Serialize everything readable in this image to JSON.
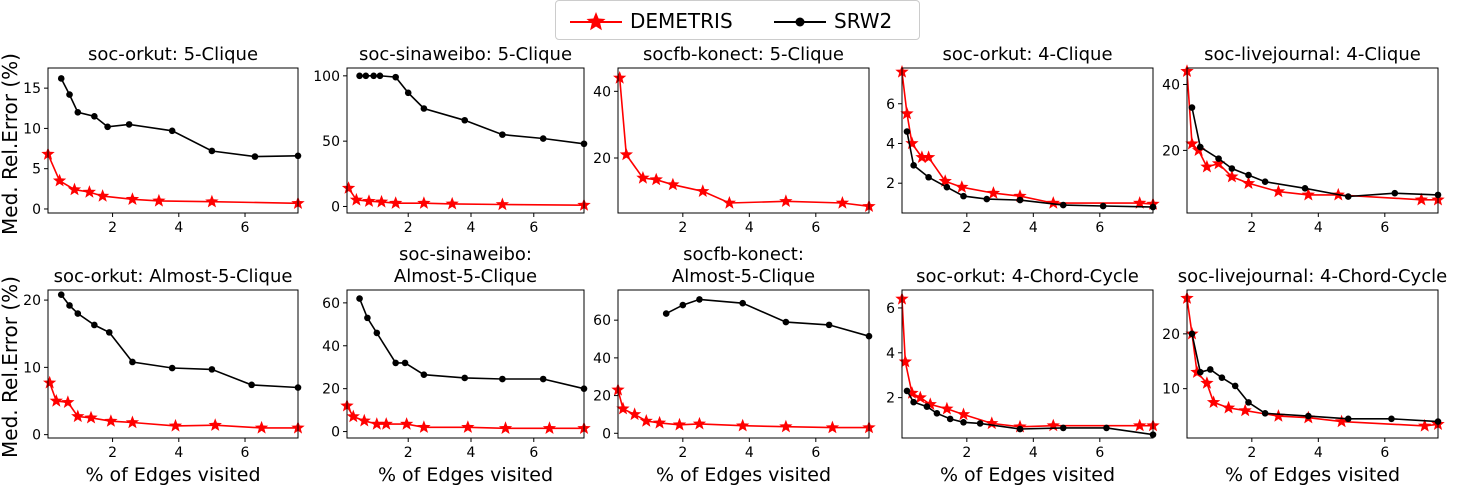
{
  "legend": [
    {
      "label": "DEMETRIS",
      "color": "#ff0000",
      "marker": "star"
    },
    {
      "label": "SRW2",
      "color": "#000000",
      "marker": "circle"
    }
  ],
  "ylabel": "Med. Rel.Error (%)",
  "xlabel": "% of Edges visited",
  "chart_data": [
    {
      "type": "line",
      "title": [
        "soc-orkut: 5-Clique"
      ],
      "xlim": [
        0.05,
        7.6
      ],
      "ylim": [
        -0.5,
        17.5
      ],
      "xticks": [
        2,
        4,
        6
      ],
      "yticks": [
        0,
        5,
        10,
        15
      ],
      "xticklabels": false,
      "series": [
        {
          "name": "DEMETRIS",
          "x": [
            0.05,
            0.4,
            0.85,
            1.3,
            1.7,
            2.6,
            3.4,
            5.0,
            7.6
          ],
          "y": [
            6.8,
            3.5,
            2.4,
            2.1,
            1.6,
            1.2,
            1.0,
            0.9,
            0.7
          ]
        },
        {
          "name": "SRW2",
          "x": [
            0.45,
            0.7,
            0.95,
            1.45,
            1.85,
            2.5,
            3.8,
            5.0,
            6.3,
            7.6
          ],
          "y": [
            16.2,
            14.2,
            12.0,
            11.5,
            10.2,
            10.5,
            9.7,
            7.2,
            6.5,
            6.6
          ]
        }
      ]
    },
    {
      "type": "line",
      "title": [
        "soc-sinaweibo: 5-Clique"
      ],
      "xlim": [
        0.05,
        7.6
      ],
      "ylim": [
        -5,
        106
      ],
      "xticks": [
        2,
        4,
        6
      ],
      "yticks": [
        0,
        50,
        100
      ],
      "xticklabels": false,
      "series": [
        {
          "name": "DEMETRIS",
          "x": [
            0.1,
            0.35,
            0.75,
            1.15,
            1.6,
            2.5,
            3.4,
            5.0,
            7.6
          ],
          "y": [
            14,
            5,
            4,
            3.5,
            2.5,
            2.5,
            2,
            1.5,
            1
          ]
        },
        {
          "name": "SRW2",
          "x": [
            0.45,
            0.65,
            0.9,
            1.1,
            1.6,
            2.0,
            2.5,
            3.8,
            5.0,
            6.3,
            7.6
          ],
          "y": [
            100,
            100,
            100,
            100,
            99,
            87,
            75,
            66,
            55,
            52,
            48
          ]
        }
      ]
    },
    {
      "type": "line",
      "title": [
        "socfb-konect: 5-Clique"
      ],
      "xlim": [
        0.05,
        7.6
      ],
      "ylim": [
        3.5,
        47
      ],
      "xticks": [
        2,
        4,
        6
      ],
      "yticks": [
        20,
        40
      ],
      "xticklabels": false,
      "series": [
        {
          "name": "DEMETRIS",
          "x": [
            0.1,
            0.3,
            0.8,
            1.2,
            1.7,
            2.6,
            3.4,
            5.1,
            6.8,
            7.6
          ],
          "y": [
            44,
            21,
            14,
            13.5,
            12,
            10,
            6.5,
            7,
            6.5,
            5.5
          ]
        }
      ]
    },
    {
      "type": "line",
      "title": [
        "soc-orkut: 4-Clique"
      ],
      "xlim": [
        0.05,
        7.6
      ],
      "ylim": [
        0.5,
        7.8
      ],
      "xticks": [
        2,
        4,
        6
      ],
      "yticks": [
        2,
        4,
        6
      ],
      "xticklabels": false,
      "series": [
        {
          "name": "DEMETRIS",
          "x": [
            0.05,
            0.2,
            0.35,
            0.65,
            0.85,
            1.35,
            1.85,
            2.8,
            3.6,
            4.6,
            7.2,
            7.6
          ],
          "y": [
            7.6,
            5.5,
            4.0,
            3.3,
            3.3,
            2.1,
            1.8,
            1.5,
            1.35,
            1.0,
            1.0,
            0.95
          ]
        },
        {
          "name": "SRW2",
          "x": [
            0.2,
            0.4,
            0.85,
            1.4,
            1.9,
            2.6,
            3.6,
            4.9,
            6.1,
            7.6
          ],
          "y": [
            4.6,
            2.9,
            2.3,
            1.8,
            1.35,
            1.2,
            1.15,
            0.9,
            0.85,
            0.8
          ]
        }
      ]
    },
    {
      "type": "line",
      "title": [
        "soc-livejournal: 4-Clique"
      ],
      "xlim": [
        0.05,
        7.6
      ],
      "ylim": [
        1,
        45
      ],
      "xticks": [
        2,
        4,
        6
      ],
      "yticks": [
        20,
        40
      ],
      "xticklabels": false,
      "series": [
        {
          "name": "DEMETRIS",
          "x": [
            0.05,
            0.2,
            0.4,
            0.65,
            1.0,
            1.4,
            1.9,
            2.8,
            3.7,
            4.6,
            7.1,
            7.6
          ],
          "y": [
            44,
            22,
            20,
            15,
            16,
            12,
            10,
            7.5,
            6.5,
            6.5,
            5,
            5
          ]
        },
        {
          "name": "SRW2",
          "x": [
            0.2,
            0.45,
            1.0,
            1.4,
            1.9,
            2.4,
            3.6,
            4.9,
            6.3,
            7.6
          ],
          "y": [
            33,
            21,
            17.5,
            14.5,
            12.5,
            10.5,
            8.5,
            6,
            7,
            6.5
          ]
        }
      ]
    },
    {
      "type": "line",
      "title": [
        "soc-orkut: Almost-5-Clique"
      ],
      "xlim": [
        0.05,
        7.6
      ],
      "ylim": [
        -0.5,
        21.5
      ],
      "xticks": [
        2,
        4,
        6
      ],
      "yticks": [
        0,
        10,
        20
      ],
      "xticklabels": true,
      "series": [
        {
          "name": "DEMETRIS",
          "x": [
            0.1,
            0.3,
            0.65,
            0.95,
            1.35,
            1.95,
            2.6,
            3.9,
            5.1,
            6.5,
            7.6
          ],
          "y": [
            7.7,
            5,
            4.8,
            2.7,
            2.5,
            2.0,
            1.8,
            1.3,
            1.4,
            1.0,
            1.0
          ]
        },
        {
          "name": "SRW2",
          "x": [
            0.45,
            0.7,
            0.95,
            1.45,
            1.9,
            2.6,
            3.8,
            5.0,
            6.2,
            7.6
          ],
          "y": [
            20.8,
            19.2,
            18.0,
            16.3,
            15.2,
            10.8,
            9.9,
            9.7,
            7.4,
            7.0
          ]
        }
      ]
    },
    {
      "type": "line",
      "title": [
        "soc-sinaweibo:",
        "Almost-5-Clique"
      ],
      "xlim": [
        0.05,
        7.6
      ],
      "ylim": [
        -3,
        66
      ],
      "xticks": [
        2,
        4,
        6
      ],
      "yticks": [
        0,
        20,
        40,
        60
      ],
      "xticklabels": true,
      "series": [
        {
          "name": "DEMETRIS",
          "x": [
            0.05,
            0.25,
            0.6,
            1.0,
            1.3,
            1.95,
            2.5,
            3.9,
            5.1,
            6.5,
            7.6
          ],
          "y": [
            12,
            7,
            5,
            3.5,
            3.5,
            3.5,
            2,
            2,
            1.5,
            1.5,
            1.5
          ]
        },
        {
          "name": "SRW2",
          "x": [
            0.45,
            0.7,
            1.0,
            1.6,
            1.9,
            2.5,
            3.8,
            5.0,
            6.3,
            7.6
          ],
          "y": [
            62,
            53,
            46,
            32,
            32,
            26.5,
            25,
            24.5,
            24.5,
            20
          ]
        }
      ]
    },
    {
      "type": "line",
      "title": [
        "socfb-konect:",
        "Almost-5-Clique"
      ],
      "xlim": [
        0.05,
        7.6
      ],
      "ylim": [
        -2.5,
        76
      ],
      "xticks": [
        2,
        4,
        6
      ],
      "yticks": [
        0,
        20,
        40,
        60
      ],
      "xticklabels": true,
      "series": [
        {
          "name": "DEMETRIS",
          "x": [
            0.05,
            0.2,
            0.55,
            0.9,
            1.3,
            1.9,
            2.5,
            3.8,
            5.1,
            6.5,
            7.6
          ],
          "y": [
            23,
            13,
            10,
            6.5,
            5.5,
            4.5,
            5,
            4,
            3.5,
            3,
            3
          ]
        },
        {
          "name": "SRW2",
          "x": [
            1.5,
            2.0,
            2.5,
            3.8,
            5.1,
            6.4,
            7.6
          ],
          "y": [
            63.5,
            68,
            71,
            69,
            59,
            57.5,
            51.5
          ]
        }
      ]
    },
    {
      "type": "line",
      "title": [
        "soc-orkut: 4-Chord-Cycle"
      ],
      "xlim": [
        0.05,
        7.6
      ],
      "ylim": [
        0.2,
        6.8
      ],
      "xticks": [
        2,
        4,
        6
      ],
      "yticks": [
        2,
        4,
        6
      ],
      "xticklabels": true,
      "series": [
        {
          "name": "DEMETRIS",
          "x": [
            0.05,
            0.15,
            0.35,
            0.6,
            0.9,
            1.4,
            1.9,
            2.75,
            3.6,
            4.6,
            7.2,
            7.6
          ],
          "y": [
            6.4,
            3.6,
            2.2,
            2.0,
            1.7,
            1.5,
            1.25,
            0.85,
            0.7,
            0.75,
            0.75,
            0.75
          ]
        },
        {
          "name": "SRW2",
          "x": [
            0.2,
            0.4,
            0.8,
            1.1,
            1.5,
            1.9,
            2.4,
            3.6,
            4.9,
            6.2,
            7.6
          ],
          "y": [
            2.3,
            1.8,
            1.6,
            1.3,
            1.05,
            0.9,
            0.85,
            0.6,
            0.65,
            0.65,
            0.35
          ]
        }
      ]
    },
    {
      "type": "line",
      "title": [
        "soc-livejournal: 4-Chord-Cycle"
      ],
      "xlim": [
        0.05,
        7.6
      ],
      "ylim": [
        1,
        28
      ],
      "xticks": [
        2,
        4,
        6
      ],
      "yticks": [
        10,
        20
      ],
      "xticklabels": true,
      "series": [
        {
          "name": "DEMETRIS",
          "x": [
            0.05,
            0.2,
            0.35,
            0.65,
            0.85,
            1.3,
            1.8,
            2.8,
            3.7,
            4.7,
            7.2,
            7.6
          ],
          "y": [
            26.5,
            20,
            13,
            11,
            7.5,
            6.5,
            6,
            5,
            4.7,
            4,
            3.2,
            3.5
          ]
        },
        {
          "name": "SRW2",
          "x": [
            0.2,
            0.45,
            0.75,
            1.1,
            1.5,
            1.9,
            2.4,
            3.7,
            4.9,
            6.2,
            7.6
          ],
          "y": [
            20,
            13,
            13.5,
            12,
            10.5,
            7.5,
            5.5,
            5,
            4.5,
            4.5,
            4
          ]
        }
      ]
    }
  ]
}
